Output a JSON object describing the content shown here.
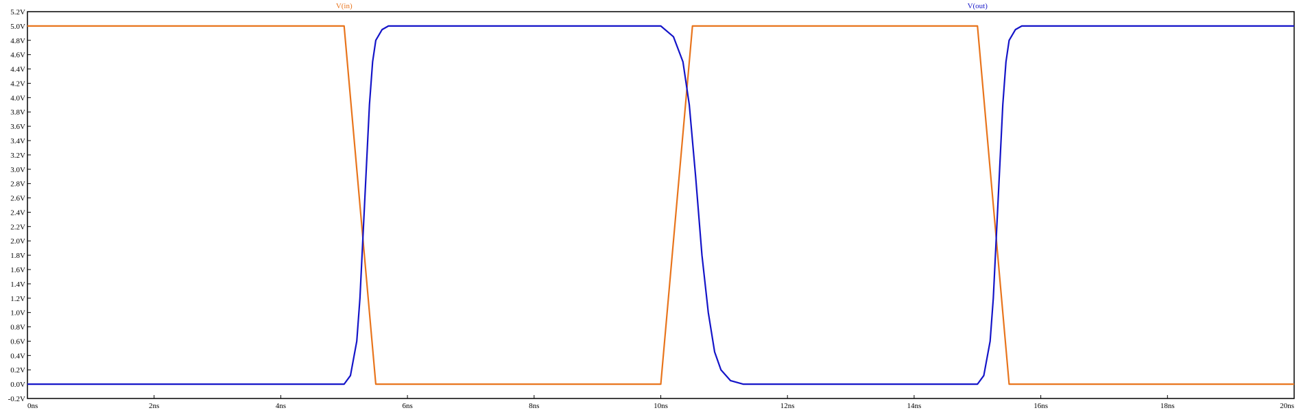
{
  "chart_data": {
    "type": "line",
    "title": "",
    "xlabel": "",
    "ylabel": "",
    "xlim": [
      0,
      20
    ],
    "ylim": [
      -0.2,
      5.2
    ],
    "x_unit": "ns",
    "x_ticks": [
      "0ns",
      "2ns",
      "4ns",
      "6ns",
      "8ns",
      "10ns",
      "12ns",
      "14ns",
      "16ns",
      "18ns",
      "20ns"
    ],
    "y_ticks": [
      "-0.2V",
      "0.0V",
      "0.2V",
      "0.4V",
      "0.6V",
      "0.8V",
      "1.0V",
      "1.2V",
      "1.4V",
      "1.6V",
      "1.8V",
      "2.0V",
      "2.2V",
      "2.4V",
      "2.6V",
      "2.8V",
      "3.0V",
      "3.2V",
      "3.4V",
      "3.6V",
      "3.8V",
      "4.0V",
      "4.2V",
      "4.4V",
      "4.6V",
      "4.8V",
      "5.0V",
      "5.2V"
    ],
    "series": [
      {
        "name": "V(in)",
        "color": "#e8741c",
        "x": [
          0,
          5.0,
          5.5,
          10.0,
          10.5,
          15.0,
          15.5,
          20.0
        ],
        "y": [
          5.0,
          5.0,
          0.0,
          0.0,
          5.0,
          5.0,
          0.0,
          0.0
        ]
      },
      {
        "name": "V(out)",
        "color": "#1414c8",
        "x": [
          0,
          5.0,
          5.1,
          5.2,
          5.25,
          5.3,
          5.35,
          5.4,
          5.45,
          5.5,
          5.6,
          5.7,
          5.8,
          10.0,
          10.2,
          10.35,
          10.45,
          10.55,
          10.65,
          10.75,
          10.85,
          10.95,
          11.1,
          11.3,
          15.0,
          15.1,
          15.2,
          15.25,
          15.3,
          15.35,
          15.4,
          15.45,
          15.5,
          15.6,
          15.7,
          15.8,
          20.0
        ],
        "y": [
          0.0,
          0.0,
          0.12,
          0.6,
          1.2,
          2.1,
          3.0,
          3.9,
          4.5,
          4.8,
          4.95,
          5.0,
          5.0,
          5.0,
          4.85,
          4.5,
          3.9,
          2.9,
          1.8,
          1.0,
          0.45,
          0.2,
          0.05,
          0.0,
          0.0,
          0.12,
          0.6,
          1.2,
          2.1,
          3.0,
          3.9,
          4.5,
          4.8,
          4.95,
          5.0,
          5.0,
          5.0
        ]
      }
    ],
    "grid": false,
    "legend": "top"
  }
}
